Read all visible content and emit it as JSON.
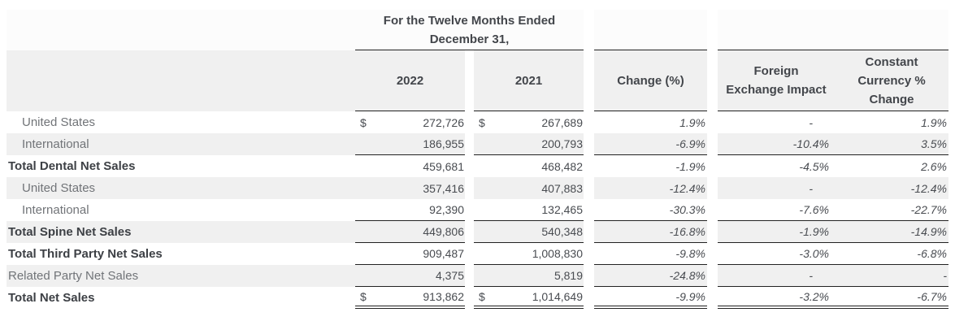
{
  "table": {
    "header": {
      "period_line1": "For the Twelve Months Ended",
      "period_line2": "December 31,",
      "col_2022": "2022",
      "col_2021": "2021",
      "col_change": "Change (%)",
      "col_fx": "Foreign Exchange Impact",
      "col_cc": "Constant Currency % Change"
    },
    "rows": [
      {
        "label": "United States",
        "cur2022": "$",
        "v2022": "272,726",
        "cur2021": "$",
        "v2021": "267,689",
        "change": "1.9%",
        "fx": "-",
        "cc": "1.9%"
      },
      {
        "label": "International",
        "v2022": "186,955",
        "v2021": "200,793",
        "change": "-6.9%",
        "fx": "-10.4%",
        "cc": "3.5%"
      },
      {
        "label": "Total Dental Net Sales",
        "v2022": "459,681",
        "v2021": "468,482",
        "change": "-1.9%",
        "fx": "-4.5%",
        "cc": "2.6%"
      },
      {
        "label": "United States",
        "v2022": "357,416",
        "v2021": "407,883",
        "change": "-12.4%",
        "fx": "-",
        "cc": "-12.4%"
      },
      {
        "label": "International",
        "v2022": "92,390",
        "v2021": "132,465",
        "change": "-30.3%",
        "fx": "-7.6%",
        "cc": "-22.7%"
      },
      {
        "label": "Total Spine Net Sales",
        "v2022": "449,806",
        "v2021": "540,348",
        "change": "-16.8%",
        "fx": "-1.9%",
        "cc": "-14.9%"
      },
      {
        "label": "Total Third Party Net Sales",
        "v2022": "909,487",
        "v2021": "1,008,830",
        "change": "-9.8%",
        "fx": "-3.0%",
        "cc": "-6.8%"
      },
      {
        "label": "Related Party Net Sales",
        "v2022": "4,375",
        "v2021": "5,819",
        "change": "-24.8%",
        "fx": "-",
        "cc": "-"
      },
      {
        "label": "Total Net Sales",
        "cur2022": "$",
        "v2022": "913,862",
        "cur2021": "$",
        "v2021": "1,014,649",
        "change": "-9.9%",
        "fx": "-3.2%",
        "cc": "-6.7%"
      }
    ]
  }
}
